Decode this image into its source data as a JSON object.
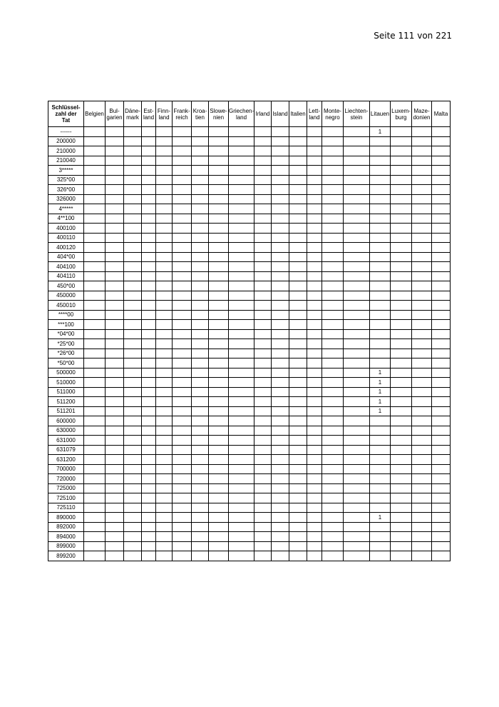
{
  "page_number": "Seite 111 von 221",
  "table": {
    "key_header": [
      "Schlüssel-",
      "zahl der",
      "Tat"
    ],
    "columns": [
      [
        "Belgien"
      ],
      [
        "Bul-",
        "garien"
      ],
      [
        "Däne-",
        "mark"
      ],
      [
        "Est-",
        "land"
      ],
      [
        "Finn-",
        "land"
      ],
      [
        "Frank-",
        "reich"
      ],
      [
        "Kroa-",
        "tien"
      ],
      [
        "Slowe-",
        "nien"
      ],
      [
        "Griechen-",
        "land"
      ],
      [
        "Irland"
      ],
      [
        "Island"
      ],
      [
        "Italien"
      ],
      [
        "Lett-",
        "land"
      ],
      [
        "Monte-",
        "negro"
      ],
      [
        "Liechten-",
        "stein"
      ],
      [
        "Litauen"
      ],
      [
        "Luxem-",
        "burg"
      ],
      [
        "Maze-",
        "donien"
      ],
      [
        "Malta"
      ]
    ],
    "rows": [
      {
        "key": "------",
        "Litauen": "1"
      },
      {
        "key": "200000"
      },
      {
        "key": "210000"
      },
      {
        "key": "210040"
      },
      {
        "key": "3*****"
      },
      {
        "key": "325*00"
      },
      {
        "key": "326*00"
      },
      {
        "key": "326000"
      },
      {
        "key": "4*****"
      },
      {
        "key": "4**100"
      },
      {
        "key": "400100"
      },
      {
        "key": "400110"
      },
      {
        "key": "400120"
      },
      {
        "key": "404*00"
      },
      {
        "key": "404100"
      },
      {
        "key": "404110"
      },
      {
        "key": "450*00"
      },
      {
        "key": "450000"
      },
      {
        "key": "450010"
      },
      {
        "key": "****00"
      },
      {
        "key": "***100"
      },
      {
        "key": "*04*00"
      },
      {
        "key": "*25*00"
      },
      {
        "key": "*26*00"
      },
      {
        "key": "*50*00"
      },
      {
        "key": "500000",
        "Litauen": "1"
      },
      {
        "key": "510000",
        "Litauen": "1"
      },
      {
        "key": "511000",
        "Litauen": "1"
      },
      {
        "key": "511200",
        "Litauen": "1"
      },
      {
        "key": "511201",
        "Litauen": "1"
      },
      {
        "key": "600000"
      },
      {
        "key": "630000"
      },
      {
        "key": "631000"
      },
      {
        "key": "631079"
      },
      {
        "key": "631200"
      },
      {
        "key": "700000"
      },
      {
        "key": "720000"
      },
      {
        "key": "725000"
      },
      {
        "key": "725100"
      },
      {
        "key": "725110"
      },
      {
        "key": "890000",
        "Litauen": "1"
      },
      {
        "key": "892000"
      },
      {
        "key": "894000"
      },
      {
        "key": "899000"
      },
      {
        "key": "899200"
      }
    ]
  }
}
